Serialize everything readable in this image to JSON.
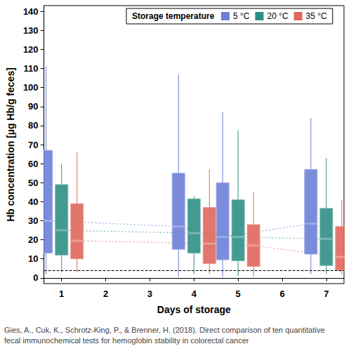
{
  "chart_data": {
    "type": "boxplot",
    "x_label": "Days of storage",
    "y_label": "Hb concentration [µg Hb/g feces]",
    "legend_title": "Storage temperature",
    "caption": "Gies, A., Cuk, K., Schrotz-King, P., & Brenner, H. (2018). Direct comparison of ten quantitative fecal immunochemical tests for hemoglobin stability in colorectal cancer",
    "x": [
      1,
      4,
      5,
      7
    ],
    "series": [
      {
        "name": "5 °C",
        "color": "#6b7fd7",
        "values": [
          [
            2,
            13,
            30,
            67,
            111
          ],
          [
            0.5,
            15,
            27,
            55,
            107
          ],
          [
            0.5,
            9.5,
            21.5,
            50,
            87
          ],
          [
            2,
            12.5,
            28.5,
            57,
            84
          ]
        ]
      },
      {
        "name": "20 °C",
        "color": "#2f8f84",
        "values": [
          [
            3,
            12,
            25,
            49,
            60
          ],
          [
            2,
            13,
            23.5,
            41.5,
            43
          ],
          [
            1,
            9,
            21.5,
            41,
            77.5
          ],
          [
            2,
            6.5,
            20.5,
            36.5,
            63
          ]
        ]
      },
      {
        "name": "35 °C",
        "color": "#e0675c",
        "values": [
          [
            3,
            10,
            19.5,
            39,
            66
          ],
          [
            2,
            7.5,
            18,
            37,
            57
          ],
          [
            0.5,
            6,
            17,
            28,
            45
          ],
          [
            2,
            4,
            11,
            27,
            41
          ]
        ]
      }
    ],
    "reference_line": 4,
    "line_style": "dotted",
    "xlim": [
      0.6,
      7.4
    ],
    "xticks": [
      1,
      2,
      3,
      4,
      5,
      6,
      7
    ],
    "ylim": [
      -3,
      143
    ],
    "yticks": [
      0,
      10,
      20,
      30,
      40,
      50,
      60,
      70,
      80,
      90,
      100,
      110,
      120,
      130,
      140
    ],
    "legend": "upper right",
    "grid": false
  }
}
